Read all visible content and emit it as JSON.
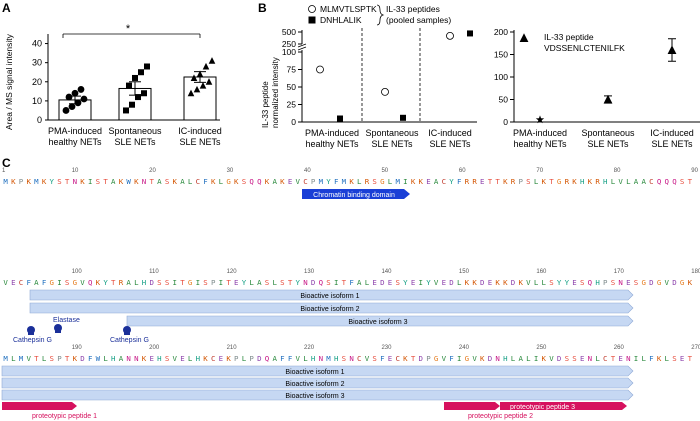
{
  "panelA": {
    "letter": "A",
    "ylabel": "Area / MS signal intensity",
    "sig": "*",
    "categories": [
      "PMA-induced\nhealthy NETs",
      "Spontaneous\nSLE NETs",
      "IC-induced\nSLE NETs"
    ],
    "yticks": [
      0,
      10,
      20,
      30,
      40
    ],
    "ylim": [
      0,
      45
    ],
    "bars": [
      {
        "mean": 10.5,
        "sem": 2.0,
        "points": [
          5,
          7,
          9,
          11,
          12,
          14,
          16
        ],
        "marker": "circle"
      },
      {
        "mean": 16.5,
        "sem": 3.5,
        "points": [
          5,
          8,
          12,
          14,
          18,
          22,
          25,
          28
        ],
        "marker": "square"
      },
      {
        "mean": 22.5,
        "sem": 2.8,
        "points": [
          14,
          16,
          18,
          20,
          22,
          24,
          28,
          31
        ],
        "marker": "triangle"
      }
    ]
  },
  "panelB": {
    "letter": "B",
    "ylabel": "IL-33 peptide\nnormalized intensity",
    "legend": {
      "pep1": "MLMVTLSPTK",
      "pep2": "DNHLALIK",
      "group_label": "IL-33 peptides\n(pooled samples)"
    },
    "yticks_low": [
      0,
      25,
      50,
      75,
      100
    ],
    "yticks_high": [
      250,
      500
    ],
    "categories": [
      "PMA-induced\nhealthy NETs",
      "Spontaneous\nSLE NETs",
      "IC-induced\nSLE NETs"
    ],
    "pep1_values": [
      75,
      43,
      420
    ],
    "pep2_values": [
      5,
      6,
      470
    ],
    "right_title": "IL-33 peptide\nVDSSENLCTENILFK",
    "right_yticks": [
      0,
      50,
      100,
      150,
      200
    ],
    "right_values": [
      {
        "mean": 5,
        "err": 0
      },
      {
        "mean": 50,
        "err": 8
      },
      {
        "mean": 160,
        "err": 25
      }
    ]
  },
  "panelC": {
    "letter": "C",
    "row1": {
      "start": 1,
      "seq": "MKPKMKYSTNKISTAKWKNTASKALCFKLGKSQQKAKEVCPMYFMKLRSGLMIKKEACYFRRETTKRPSLKTGRKHKRHLVLAACQQQST",
      "ticks": [
        1,
        10,
        20,
        30,
        40,
        50,
        60,
        70,
        80,
        90
      ]
    },
    "row2": {
      "start": 91,
      "seq": "VECFAFGISGVQKYTRALHDSSITGISPITEYLASLSTYNDQSITFALEDESYEIYVEDLKKDEKKDKVLLSYYESQHPSNESGDGVDGK",
      "ticks": [
        100,
        110,
        120,
        130,
        140,
        150,
        160,
        170,
        180
      ]
    },
    "row3": {
      "start": 181,
      "seq": "MLMVTLSPTKDFWLHANNKEHSVELHKCEKPLPDQAFFVLHNMHSNCVSFECKTDPGVFIGVKDNHLALIKVDSSENLCTENILFKLSET",
      "ticks": [
        190,
        200,
        210,
        220,
        230,
        240,
        250,
        260,
        270
      ]
    },
    "chromatin": "Chromatin binding domain",
    "isoforms": [
      "Bioactive isoform 1",
      "Bioactive isoform 2",
      "Bioactive isoform 3"
    ],
    "cathepsin": "Cathepsin G",
    "elastase": "Elastase",
    "pp1": "proteotypic peptide 1",
    "pp2": "proteotypic peptide 2",
    "pp3": "proteotypic peptide 3",
    "aa_colors": {
      "A": "#2b8a3e",
      "C": "#c0392b",
      "D": "#8e44ad",
      "E": "#8e44ad",
      "F": "#1f6fbf",
      "G": "#e67e22",
      "H": "#16a085",
      "I": "#2b8a3e",
      "K": "#d35400",
      "L": "#2b8a3e",
      "M": "#1f6fbf",
      "N": "#c71585",
      "P": "#7f8c8d",
      "Q": "#c71585",
      "R": "#d35400",
      "S": "#e74c3c",
      "T": "#e74c3c",
      "V": "#2b8a3e",
      "W": "#1f6fbf",
      "Y": "#16a085"
    }
  }
}
